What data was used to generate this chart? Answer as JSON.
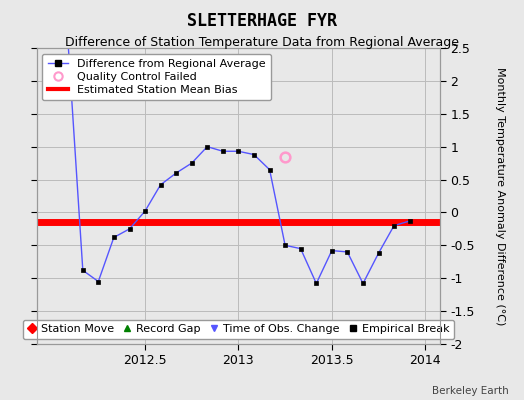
{
  "title": "SLETTERHAGE FYR",
  "subtitle": "Difference of Station Temperature Data from Regional Average",
  "ylabel": "Monthly Temperature Anomaly Difference (°C)",
  "credit": "Berkeley Earth",
  "background_color": "#e8e8e8",
  "xlim": [
    2011.92,
    2014.08
  ],
  "ylim": [
    -2.0,
    2.5
  ],
  "yticks": [
    -2.0,
    -1.5,
    -1.0,
    -0.5,
    0.0,
    0.5,
    1.0,
    1.5,
    2.0,
    2.5
  ],
  "xticks": [
    2012.5,
    2013.0,
    2013.5,
    2014.0
  ],
  "xticklabels": [
    "2012.5",
    "2013",
    "2013.5",
    "2014"
  ],
  "mean_bias": -0.15,
  "line_x": [
    2012.0,
    2012.083,
    2012.167,
    2012.25,
    2012.333,
    2012.417,
    2012.5,
    2012.583,
    2012.667,
    2012.75,
    2012.833,
    2012.917,
    2013.0,
    2013.083,
    2013.167,
    2013.25,
    2013.333,
    2013.417,
    2013.5,
    2013.583,
    2013.667,
    2013.75,
    2013.833,
    2013.917
  ],
  "line_y": [
    3.5,
    2.8,
    -0.88,
    -1.05,
    -0.38,
    -0.25,
    0.02,
    0.42,
    0.6,
    0.75,
    1.0,
    0.93,
    0.93,
    0.88,
    0.65,
    -0.5,
    -0.55,
    -1.08,
    -0.58,
    -0.6,
    -1.08,
    -0.62,
    -0.2,
    -0.13
  ],
  "qc_failed_x": [
    2013.25
  ],
  "qc_failed_y": [
    0.85
  ],
  "line_color": "#5555ff",
  "marker_color": "#000000",
  "qc_color": "#ff99cc",
  "bias_color": "#ff0000",
  "grid_color": "#bbbbbb",
  "title_fontsize": 12,
  "subtitle_fontsize": 9,
  "tick_labelsize": 9,
  "axis_label_fontsize": 8,
  "legend_fontsize": 8
}
